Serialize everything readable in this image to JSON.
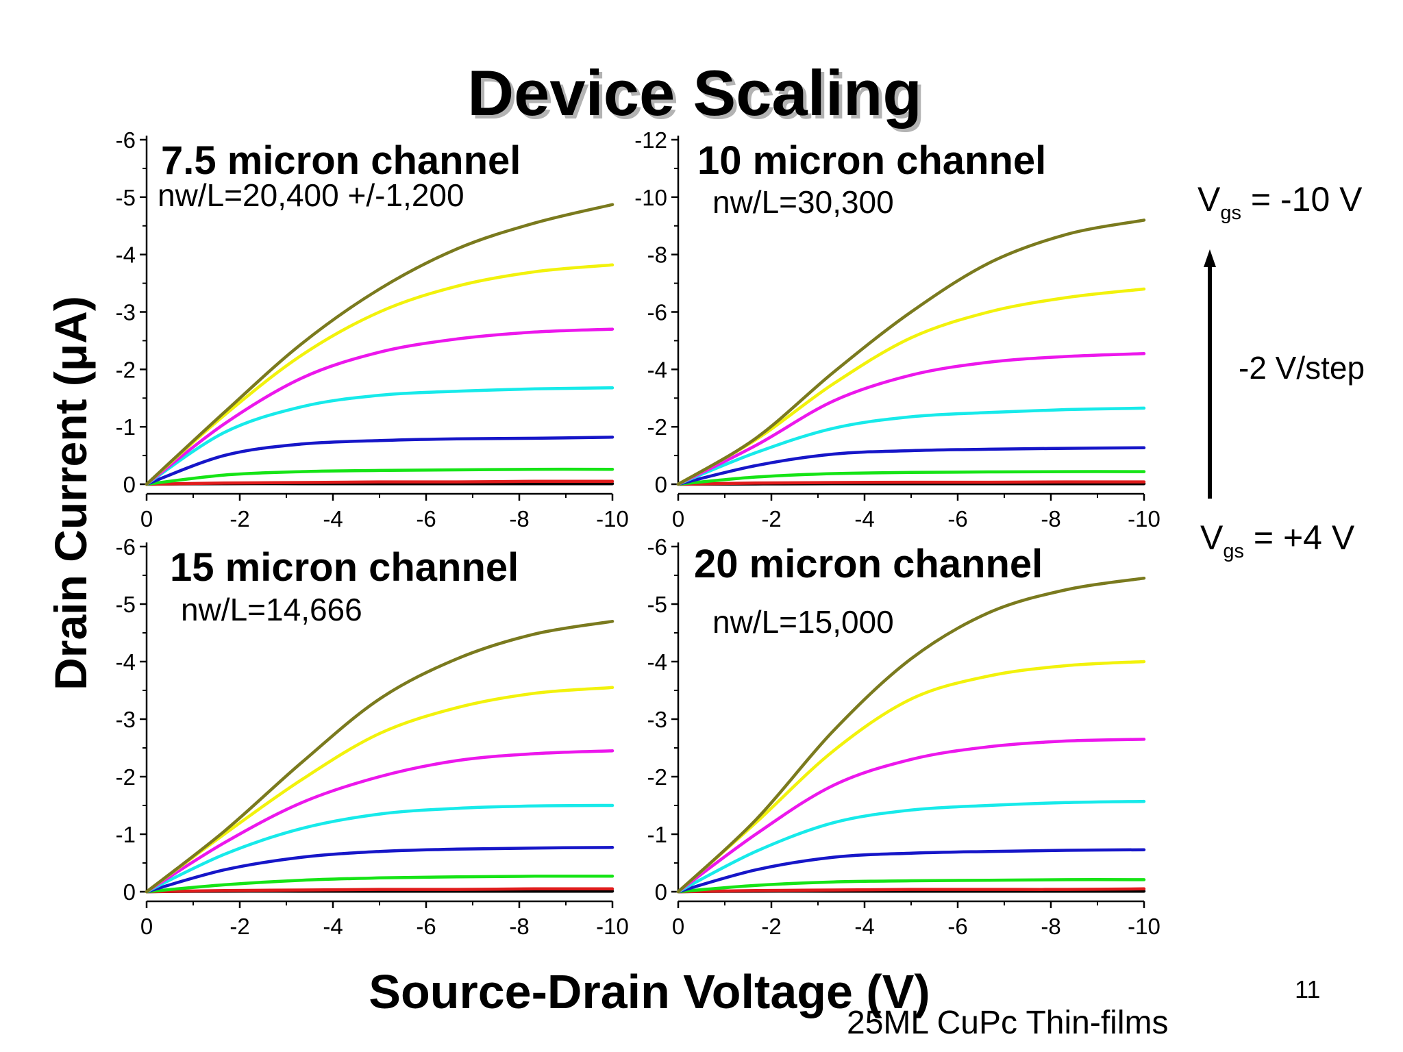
{
  "slide": {
    "title": "Device Scaling",
    "page_number": "11",
    "footer": "25ML CuPc Thin-films",
    "vgs_top_label": "V",
    "vgs_top_sub": "gs",
    "vgs_top_value": " = -10 V",
    "vgs_bottom_label": "V",
    "vgs_bottom_sub": "gs",
    "vgs_bottom_value": " = +4 V",
    "step_label": "-2 V/step",
    "arrow_icon": "up-arrow-icon"
  },
  "colors": {
    "axis": "#000000",
    "trace_colors": [
      "#7a7a1e",
      "#f2f20c",
      "#ec17ec",
      "#17eaea",
      "#1616c8",
      "#16e416",
      "#e01c1c",
      "#000000"
    ]
  },
  "chart_data": [
    {
      "type": "line",
      "title": "7.5 micron channel",
      "subtitle": "nw/L=20,400 +/-1,200",
      "xlabel": "Source-Drain Voltage (V)",
      "ylabel": "Drain Current (μA)",
      "xlim": [
        0,
        -10
      ],
      "ylim": [
        0,
        -6
      ],
      "xticks": [
        "0",
        "-2",
        "-4",
        "-6",
        "-8",
        "-10"
      ],
      "yticks": [
        "0",
        "-1",
        "-2",
        "-3",
        "-4",
        "-5",
        "-6"
      ],
      "grid": false,
      "series": [
        {
          "values": [
            0,
            -1.25,
            -2.45,
            -3.4,
            -4.1,
            -4.55,
            -4.87
          ],
          "color": "#7a7a1e"
        },
        {
          "values": [
            0,
            -1.2,
            -2.25,
            -3.0,
            -3.45,
            -3.7,
            -3.82
          ],
          "color": "#f2f20c"
        },
        {
          "values": [
            0,
            -1.05,
            -1.85,
            -2.3,
            -2.53,
            -2.65,
            -2.7
          ],
          "color": "#ec17ec"
        },
        {
          "values": [
            0,
            -0.9,
            -1.35,
            -1.55,
            -1.62,
            -1.66,
            -1.68
          ],
          "color": "#17eaea"
        },
        {
          "values": [
            0,
            -0.5,
            -0.7,
            -0.76,
            -0.79,
            -0.8,
            -0.82
          ],
          "color": "#1616c8"
        },
        {
          "values": [
            0,
            -0.16,
            -0.22,
            -0.24,
            -0.25,
            -0.26,
            -0.26
          ],
          "color": "#16e416"
        },
        {
          "values": [
            0,
            -0.02,
            -0.03,
            -0.04,
            -0.04,
            -0.05,
            -0.05
          ],
          "color": "#e01c1c"
        },
        {
          "values": [
            0,
            -0.01,
            -0.01,
            -0.01,
            -0.01,
            -0.01,
            -0.01
          ],
          "color": "#000000"
        }
      ]
    },
    {
      "type": "line",
      "title": "10 micron channel",
      "subtitle": "nw/L=30,300",
      "xlabel": "Source-Drain Voltage (V)",
      "ylabel": "Drain Current (μA)",
      "xlim": [
        0,
        -10
      ],
      "ylim": [
        0,
        -12
      ],
      "xticks": [
        "0",
        "-2",
        "-4",
        "-6",
        "-8",
        "-10"
      ],
      "yticks": [
        "0",
        "-2",
        "-4",
        "-6",
        "-8",
        "-10",
        "-12"
      ],
      "grid": false,
      "series": [
        {
          "values": [
            0,
            -1.6,
            -3.9,
            -6.0,
            -7.7,
            -8.7,
            -9.2
          ],
          "color": "#7a7a1e"
        },
        {
          "values": [
            0,
            -1.55,
            -3.5,
            -5.1,
            -6.0,
            -6.5,
            -6.8
          ],
          "color": "#f2f20c"
        },
        {
          "values": [
            0,
            -1.35,
            -2.9,
            -3.8,
            -4.25,
            -4.45,
            -4.55
          ],
          "color": "#ec17ec"
        },
        {
          "values": [
            0,
            -1.1,
            -1.95,
            -2.35,
            -2.5,
            -2.6,
            -2.65
          ],
          "color": "#17eaea"
        },
        {
          "values": [
            0,
            -0.65,
            -1.05,
            -1.17,
            -1.22,
            -1.25,
            -1.27
          ],
          "color": "#1616c8"
        },
        {
          "values": [
            0,
            -0.25,
            -0.37,
            -0.41,
            -0.43,
            -0.44,
            -0.44
          ],
          "color": "#16e416"
        },
        {
          "values": [
            0,
            -0.04,
            -0.06,
            -0.07,
            -0.07,
            -0.08,
            -0.08
          ],
          "color": "#e01c1c"
        },
        {
          "values": [
            0,
            -0.01,
            -0.02,
            -0.02,
            -0.02,
            -0.02,
            -0.02
          ],
          "color": "#000000"
        }
      ]
    },
    {
      "type": "line",
      "title": "15 micron channel",
      "subtitle": "nw/L=14,666",
      "xlabel": "Source-Drain Voltage (V)",
      "ylabel": "Drain Current (μA)",
      "xlim": [
        0,
        -10
      ],
      "ylim": [
        0,
        -6
      ],
      "xticks": [
        "0",
        "-2",
        "-4",
        "-6",
        "-8",
        "-10"
      ],
      "yticks": [
        "0",
        "-1",
        "-2",
        "-3",
        "-4",
        "-5",
        "-6"
      ],
      "grid": false,
      "series": [
        {
          "values": [
            0,
            -1.05,
            -2.25,
            -3.35,
            -4.05,
            -4.48,
            -4.7
          ],
          "color": "#7a7a1e"
        },
        {
          "values": [
            0,
            -1.0,
            -1.95,
            -2.75,
            -3.2,
            -3.45,
            -3.55
          ],
          "color": "#f2f20c"
        },
        {
          "values": [
            0,
            -0.85,
            -1.55,
            -2.0,
            -2.28,
            -2.4,
            -2.45
          ],
          "color": "#ec17ec"
        },
        {
          "values": [
            0,
            -0.65,
            -1.1,
            -1.35,
            -1.45,
            -1.49,
            -1.5
          ],
          "color": "#17eaea"
        },
        {
          "values": [
            0,
            -0.38,
            -0.6,
            -0.7,
            -0.74,
            -0.76,
            -0.77
          ],
          "color": "#1616c8"
        },
        {
          "values": [
            0,
            -0.12,
            -0.2,
            -0.24,
            -0.26,
            -0.27,
            -0.27
          ],
          "color": "#16e416"
        },
        {
          "values": [
            0,
            -0.02,
            -0.03,
            -0.04,
            -0.04,
            -0.05,
            -0.05
          ],
          "color": "#e01c1c"
        },
        {
          "values": [
            0,
            -0.01,
            -0.01,
            -0.01,
            -0.01,
            -0.01,
            -0.01
          ],
          "color": "#000000"
        }
      ]
    },
    {
      "type": "line",
      "title": "20 micron channel",
      "subtitle": "nw/L=15,000",
      "xlabel": "Source-Drain Voltage (V)",
      "ylabel": "Drain Current (μA)",
      "xlim": [
        0,
        -10
      ],
      "ylim": [
        0,
        -6
      ],
      "xticks": [
        "0",
        "-2",
        "-4",
        "-6",
        "-8",
        "-10"
      ],
      "yticks": [
        "0",
        "-1",
        "-2",
        "-3",
        "-4",
        "-5",
        "-6"
      ],
      "grid": false,
      "series": [
        {
          "values": [
            0,
            -1.25,
            -2.8,
            -4.05,
            -4.85,
            -5.25,
            -5.45
          ],
          "color": "#7a7a1e"
        },
        {
          "values": [
            0,
            -1.2,
            -2.45,
            -3.35,
            -3.75,
            -3.93,
            -4.0
          ],
          "color": "#f2f20c"
        },
        {
          "values": [
            0,
            -1.0,
            -1.85,
            -2.3,
            -2.52,
            -2.62,
            -2.65
          ],
          "color": "#ec17ec"
        },
        {
          "values": [
            0,
            -0.7,
            -1.2,
            -1.42,
            -1.5,
            -1.55,
            -1.57
          ],
          "color": "#17eaea"
        },
        {
          "values": [
            0,
            -0.38,
            -0.6,
            -0.67,
            -0.7,
            -0.72,
            -0.73
          ],
          "color": "#1616c8"
        },
        {
          "values": [
            0,
            -0.11,
            -0.17,
            -0.19,
            -0.2,
            -0.21,
            -0.21
          ],
          "color": "#16e416"
        },
        {
          "values": [
            0,
            -0.02,
            -0.03,
            -0.04,
            -0.04,
            -0.04,
            -0.05
          ],
          "color": "#e01c1c"
        },
        {
          "values": [
            0,
            -0.01,
            -0.01,
            -0.01,
            -0.01,
            -0.01,
            -0.01
          ],
          "color": "#000000"
        }
      ]
    }
  ]
}
